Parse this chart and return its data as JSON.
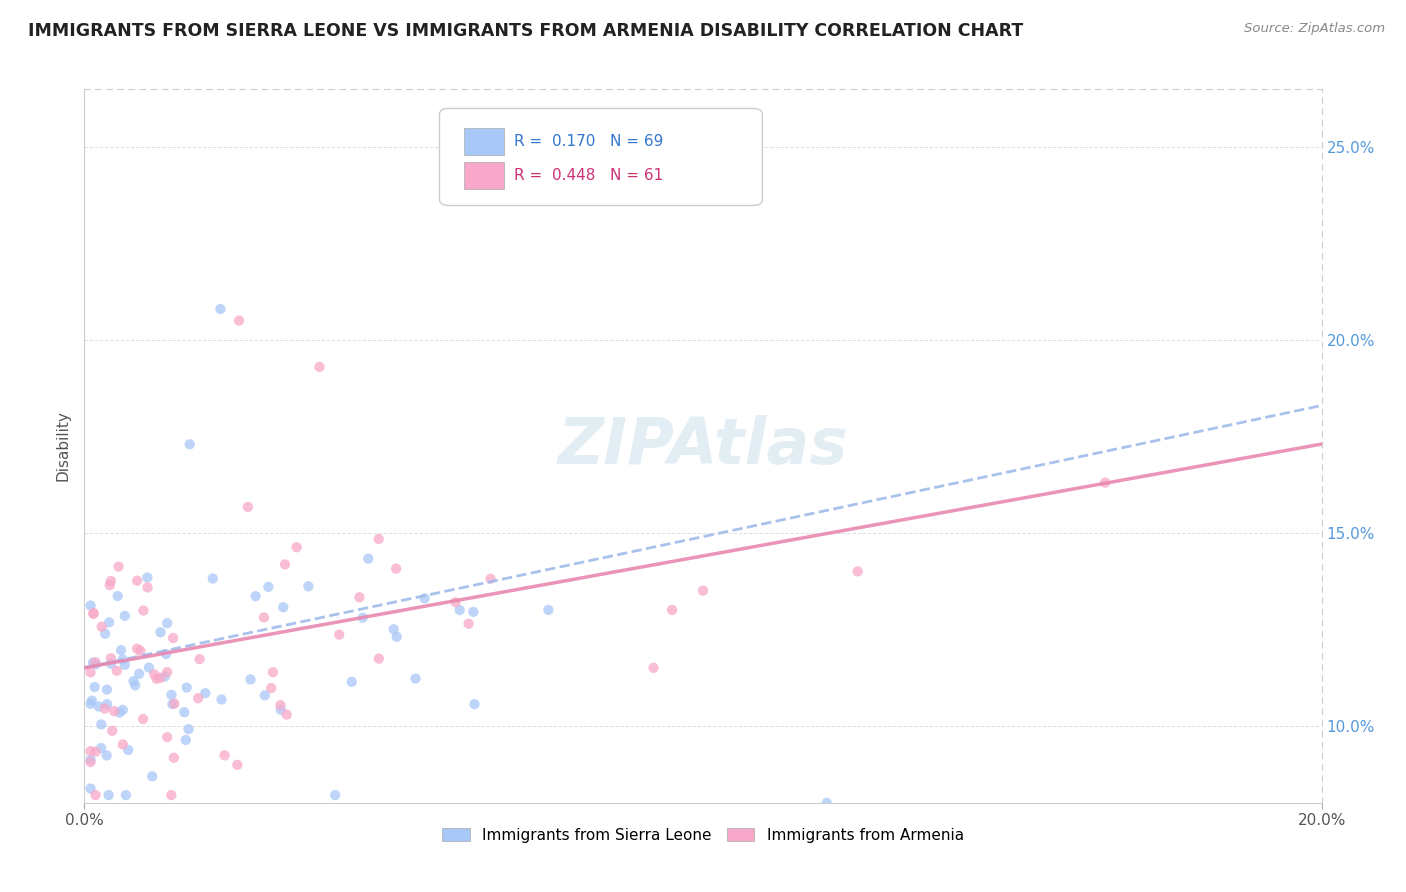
{
  "title": "IMMIGRANTS FROM SIERRA LEONE VS IMMIGRANTS FROM ARMENIA DISABILITY CORRELATION CHART",
  "source": "Source: ZipAtlas.com",
  "ylabel": "Disability",
  "r_sierra": 0.17,
  "n_sierra": 69,
  "r_armenia": 0.448,
  "n_armenia": 61,
  "color_sierra": "#a8c8f8",
  "color_armenia": "#f8a8c8",
  "trendline_sierra_color": "#9ab8e8",
  "trendline_armenia_color": "#e888b0",
  "xmin": 0.0,
  "xmax": 0.2,
  "ymin": 0.08,
  "ymax": 0.265,
  "yticks": [
    0.1,
    0.15,
    0.2,
    0.25
  ],
  "ytick_labels": [
    "10.0%",
    "15.0%",
    "20.0%",
    "25.0%"
  ],
  "watermark": "ZIPAtlas",
  "legend_label_sierra": "Immigrants from Sierra Leone",
  "legend_label_armenia": "Immigrants from Armenia",
  "trendline_y_start": 0.115,
  "sierra_trendline_y_end": 0.183,
  "armenia_trendline_y_end": 0.173
}
